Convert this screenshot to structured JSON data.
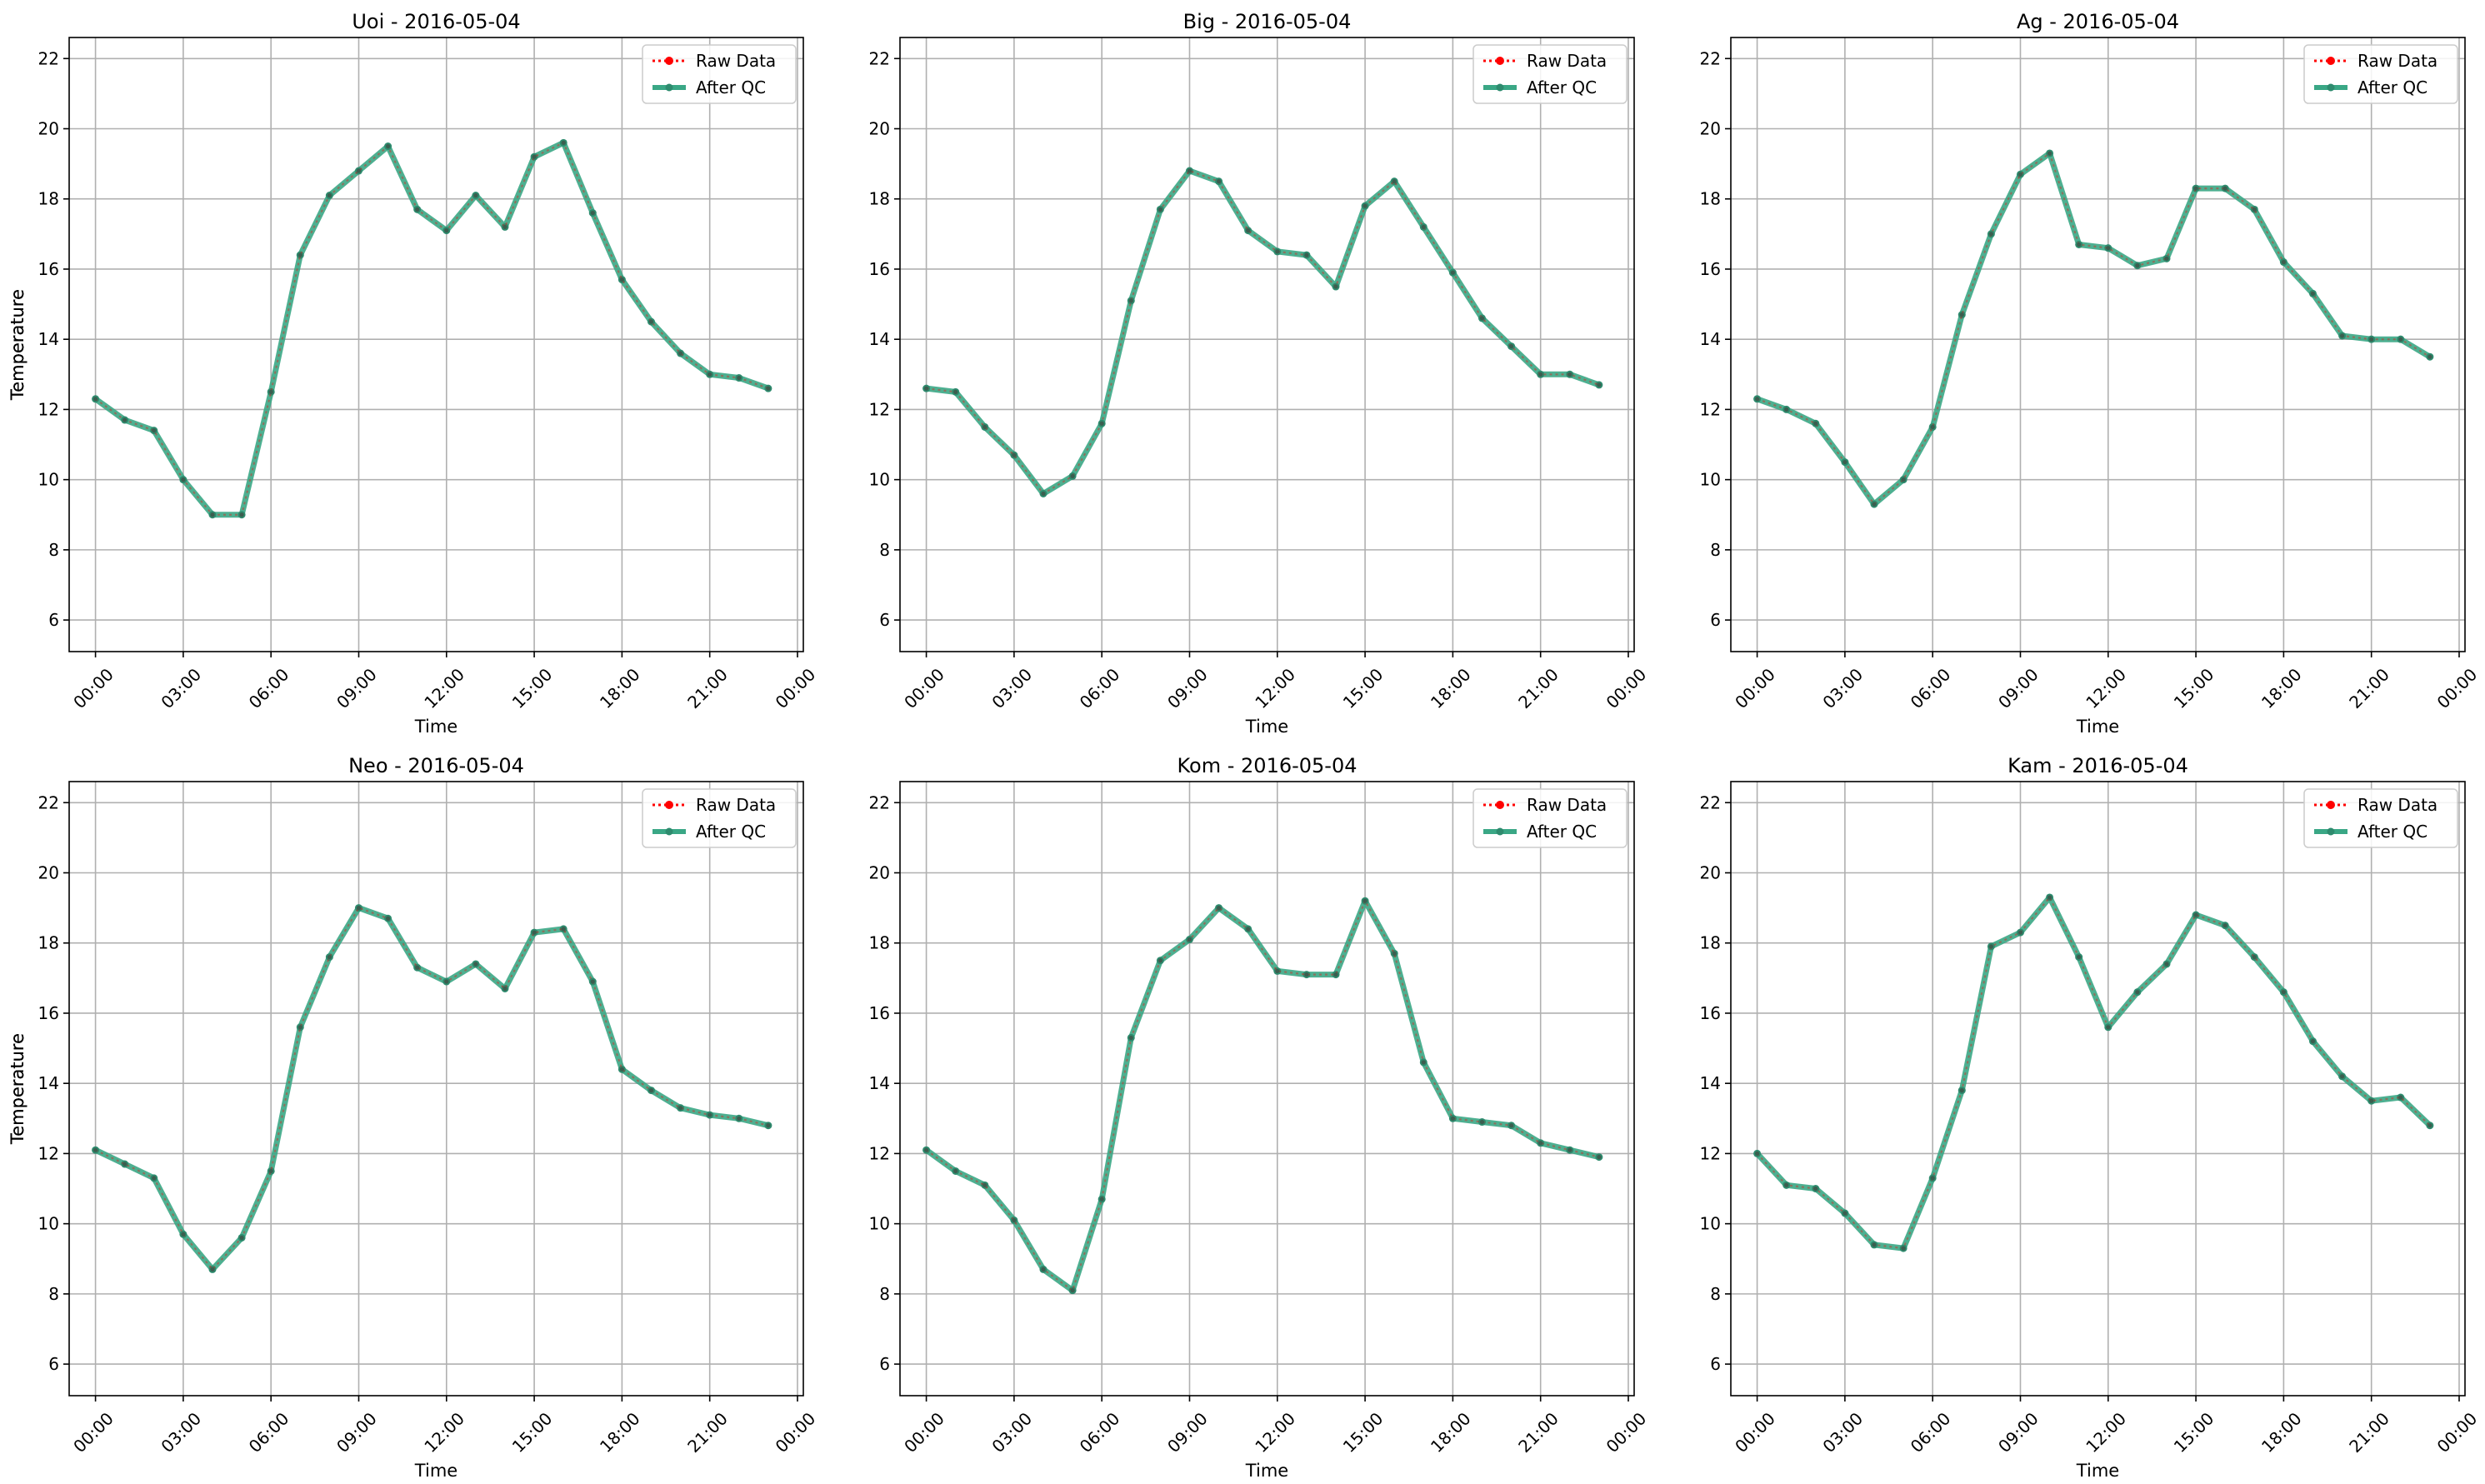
{
  "colors": {
    "raw": "#ff0000",
    "qc": "#2e8b6e",
    "qc_line": "#3aa785",
    "grid": "#b0b0b0",
    "axis": "#000000"
  },
  "legend": {
    "raw_label": "Raw Data",
    "qc_label": "After QC",
    "placement": "upper-right"
  },
  "chart_data": [
    {
      "type": "line",
      "title": "Uoi - 2016-05-04",
      "xlabel": "Time",
      "ylabel": "Temperature",
      "ylim": [
        5.1,
        22.6
      ],
      "xlim": [
        -0.9,
        24.2
      ],
      "grid": true,
      "x_ticks": [
        0,
        3,
        6,
        9,
        12,
        15,
        18,
        21,
        24
      ],
      "x_tick_labels": [
        "00:00",
        "03:00",
        "06:00",
        "09:00",
        "12:00",
        "15:00",
        "18:00",
        "21:00",
        "00:00"
      ],
      "y_ticks": [
        6,
        8,
        10,
        12,
        14,
        16,
        18,
        20,
        22
      ],
      "x": [
        0,
        1,
        2,
        3,
        4,
        5,
        6,
        7,
        8,
        9,
        10,
        11,
        12,
        13,
        14,
        15,
        16,
        17,
        18,
        19,
        20,
        21,
        22,
        23
      ],
      "series": [
        {
          "name": "Raw Data",
          "values": [
            12.3,
            11.7,
            11.4,
            10.0,
            9.0,
            9.0,
            12.5,
            16.4,
            18.1,
            18.8,
            19.5,
            17.7,
            17.1,
            18.1,
            17.2,
            19.2,
            19.6,
            17.6,
            15.7,
            14.5,
            13.6,
            13.0,
            12.9,
            12.6
          ]
        },
        {
          "name": "After QC",
          "values": [
            12.3,
            11.7,
            11.4,
            10.0,
            9.0,
            9.0,
            12.5,
            16.4,
            18.1,
            18.8,
            19.5,
            17.7,
            17.1,
            18.1,
            17.2,
            19.2,
            19.6,
            17.6,
            15.7,
            14.5,
            13.6,
            13.0,
            12.9,
            12.6
          ]
        }
      ]
    },
    {
      "type": "line",
      "title": "Big - 2016-05-04",
      "xlabel": "Time",
      "ylabel": "Temperature",
      "ylim": [
        5.1,
        22.6
      ],
      "xlim": [
        -0.9,
        24.2
      ],
      "grid": true,
      "x_ticks": [
        0,
        3,
        6,
        9,
        12,
        15,
        18,
        21,
        24
      ],
      "x_tick_labels": [
        "00:00",
        "03:00",
        "06:00",
        "09:00",
        "12:00",
        "15:00",
        "18:00",
        "21:00",
        "00:00"
      ],
      "y_ticks": [
        6,
        8,
        10,
        12,
        14,
        16,
        18,
        20,
        22
      ],
      "x": [
        0,
        1,
        2,
        3,
        4,
        5,
        6,
        7,
        8,
        9,
        10,
        11,
        12,
        13,
        14,
        15,
        16,
        17,
        18,
        19,
        20,
        21,
        22,
        23
      ],
      "series": [
        {
          "name": "Raw Data",
          "values": [
            12.6,
            12.5,
            11.5,
            10.7,
            9.6,
            10.1,
            11.6,
            15.1,
            17.7,
            18.8,
            18.5,
            17.1,
            16.5,
            16.4,
            15.5,
            17.8,
            18.5,
            17.2,
            15.9,
            14.6,
            13.8,
            13.0,
            13.0,
            12.7
          ]
        },
        {
          "name": "After QC",
          "values": [
            12.6,
            12.5,
            11.5,
            10.7,
            9.6,
            10.1,
            11.6,
            15.1,
            17.7,
            18.8,
            18.5,
            17.1,
            16.5,
            16.4,
            15.5,
            17.8,
            18.5,
            17.2,
            15.9,
            14.6,
            13.8,
            13.0,
            13.0,
            12.7
          ]
        }
      ]
    },
    {
      "type": "line",
      "title": "Ag - 2016-05-04",
      "xlabel": "Time",
      "ylabel": "Temperature",
      "ylim": [
        5.1,
        22.6
      ],
      "xlim": [
        -0.9,
        24.2
      ],
      "grid": true,
      "x_ticks": [
        0,
        3,
        6,
        9,
        12,
        15,
        18,
        21,
        24
      ],
      "x_tick_labels": [
        "00:00",
        "03:00",
        "06:00",
        "09:00",
        "12:00",
        "15:00",
        "18:00",
        "21:00",
        "00:00"
      ],
      "y_ticks": [
        6,
        8,
        10,
        12,
        14,
        16,
        18,
        20,
        22
      ],
      "x": [
        0,
        1,
        2,
        3,
        4,
        5,
        6,
        7,
        8,
        9,
        10,
        11,
        12,
        13,
        14,
        15,
        16,
        17,
        18,
        19,
        20,
        21,
        22,
        23
      ],
      "series": [
        {
          "name": "Raw Data",
          "values": [
            12.3,
            12.0,
            11.6,
            10.5,
            9.3,
            10.0,
            11.5,
            14.7,
            17.0,
            18.7,
            19.3,
            16.7,
            16.6,
            16.1,
            16.3,
            18.3,
            18.3,
            17.7,
            16.2,
            15.3,
            14.1,
            14.0,
            14.0,
            13.5
          ]
        },
        {
          "name": "After QC",
          "values": [
            12.3,
            12.0,
            11.6,
            10.5,
            9.3,
            10.0,
            11.5,
            14.7,
            17.0,
            18.7,
            19.3,
            16.7,
            16.6,
            16.1,
            16.3,
            18.3,
            18.3,
            17.7,
            16.2,
            15.3,
            14.1,
            14.0,
            14.0,
            13.5
          ]
        }
      ]
    },
    {
      "type": "line",
      "title": "Neo - 2016-05-04",
      "xlabel": "Time",
      "ylabel": "Temperature",
      "ylim": [
        5.1,
        22.6
      ],
      "xlim": [
        -0.9,
        24.2
      ],
      "grid": true,
      "x_ticks": [
        0,
        3,
        6,
        9,
        12,
        15,
        18,
        21,
        24
      ],
      "x_tick_labels": [
        "00:00",
        "03:00",
        "06:00",
        "09:00",
        "12:00",
        "15:00",
        "18:00",
        "21:00",
        "00:00"
      ],
      "y_ticks": [
        6,
        8,
        10,
        12,
        14,
        16,
        18,
        20,
        22
      ],
      "x": [
        0,
        1,
        2,
        3,
        4,
        5,
        6,
        7,
        8,
        9,
        10,
        11,
        12,
        13,
        14,
        15,
        16,
        17,
        18,
        19,
        20,
        21,
        22,
        23
      ],
      "series": [
        {
          "name": "Raw Data",
          "values": [
            12.1,
            11.7,
            11.3,
            9.7,
            8.7,
            9.6,
            11.5,
            15.6,
            17.6,
            19.0,
            18.7,
            17.3,
            16.9,
            17.4,
            16.7,
            18.3,
            18.4,
            16.9,
            14.4,
            13.8,
            13.3,
            13.1,
            13.0,
            12.8
          ]
        },
        {
          "name": "After QC",
          "values": [
            12.1,
            11.7,
            11.3,
            9.7,
            8.7,
            9.6,
            11.5,
            15.6,
            17.6,
            19.0,
            18.7,
            17.3,
            16.9,
            17.4,
            16.7,
            18.3,
            18.4,
            16.9,
            14.4,
            13.8,
            13.3,
            13.1,
            13.0,
            12.8
          ]
        }
      ]
    },
    {
      "type": "line",
      "title": "Kom - 2016-05-04",
      "xlabel": "Time",
      "ylabel": "Temperature",
      "ylim": [
        5.1,
        22.6
      ],
      "xlim": [
        -0.9,
        24.2
      ],
      "grid": true,
      "x_ticks": [
        0,
        3,
        6,
        9,
        12,
        15,
        18,
        21,
        24
      ],
      "x_tick_labels": [
        "00:00",
        "03:00",
        "06:00",
        "09:00",
        "12:00",
        "15:00",
        "18:00",
        "21:00",
        "00:00"
      ],
      "y_ticks": [
        6,
        8,
        10,
        12,
        14,
        16,
        18,
        20,
        22
      ],
      "x": [
        0,
        1,
        2,
        3,
        4,
        5,
        6,
        7,
        8,
        9,
        10,
        11,
        12,
        13,
        14,
        15,
        16,
        17,
        18,
        19,
        20,
        21,
        22,
        23
      ],
      "series": [
        {
          "name": "Raw Data",
          "values": [
            12.1,
            11.5,
            11.1,
            10.1,
            8.7,
            8.1,
            10.7,
            15.3,
            17.5,
            18.1,
            19.0,
            18.4,
            17.2,
            17.1,
            17.1,
            19.2,
            17.7,
            14.6,
            13.0,
            12.9,
            12.8,
            12.3,
            12.1,
            11.9
          ]
        },
        {
          "name": "After QC",
          "values": [
            12.1,
            11.5,
            11.1,
            10.1,
            8.7,
            8.1,
            10.7,
            15.3,
            17.5,
            18.1,
            19.0,
            18.4,
            17.2,
            17.1,
            17.1,
            19.2,
            17.7,
            14.6,
            13.0,
            12.9,
            12.8,
            12.3,
            12.1,
            11.9
          ]
        }
      ]
    },
    {
      "type": "line",
      "title": "Kam - 2016-05-04",
      "xlabel": "Time",
      "ylabel": "Temperature",
      "ylim": [
        5.1,
        22.6
      ],
      "xlim": [
        -0.9,
        24.2
      ],
      "grid": true,
      "x_ticks": [
        0,
        3,
        6,
        9,
        12,
        15,
        18,
        21,
        24
      ],
      "x_tick_labels": [
        "00:00",
        "03:00",
        "06:00",
        "09:00",
        "12:00",
        "15:00",
        "18:00",
        "21:00",
        "00:00"
      ],
      "y_ticks": [
        6,
        8,
        10,
        12,
        14,
        16,
        18,
        20,
        22
      ],
      "x": [
        0,
        1,
        2,
        3,
        4,
        5,
        6,
        7,
        8,
        9,
        10,
        11,
        12,
        13,
        14,
        15,
        16,
        17,
        18,
        19,
        20,
        21,
        22,
        23
      ],
      "series": [
        {
          "name": "Raw Data",
          "values": [
            12.0,
            11.1,
            11.0,
            10.3,
            9.4,
            9.3,
            11.3,
            13.8,
            17.9,
            18.3,
            19.3,
            17.6,
            15.6,
            16.6,
            17.4,
            18.8,
            18.5,
            17.6,
            16.6,
            15.2,
            14.2,
            13.5,
            13.6,
            12.8
          ]
        },
        {
          "name": "After QC",
          "values": [
            12.0,
            11.1,
            11.0,
            10.3,
            9.4,
            9.3,
            11.3,
            13.8,
            17.9,
            18.3,
            19.3,
            17.6,
            15.6,
            16.6,
            17.4,
            18.8,
            18.5,
            17.6,
            16.6,
            15.2,
            14.2,
            13.5,
            13.6,
            12.8
          ]
        }
      ]
    }
  ]
}
